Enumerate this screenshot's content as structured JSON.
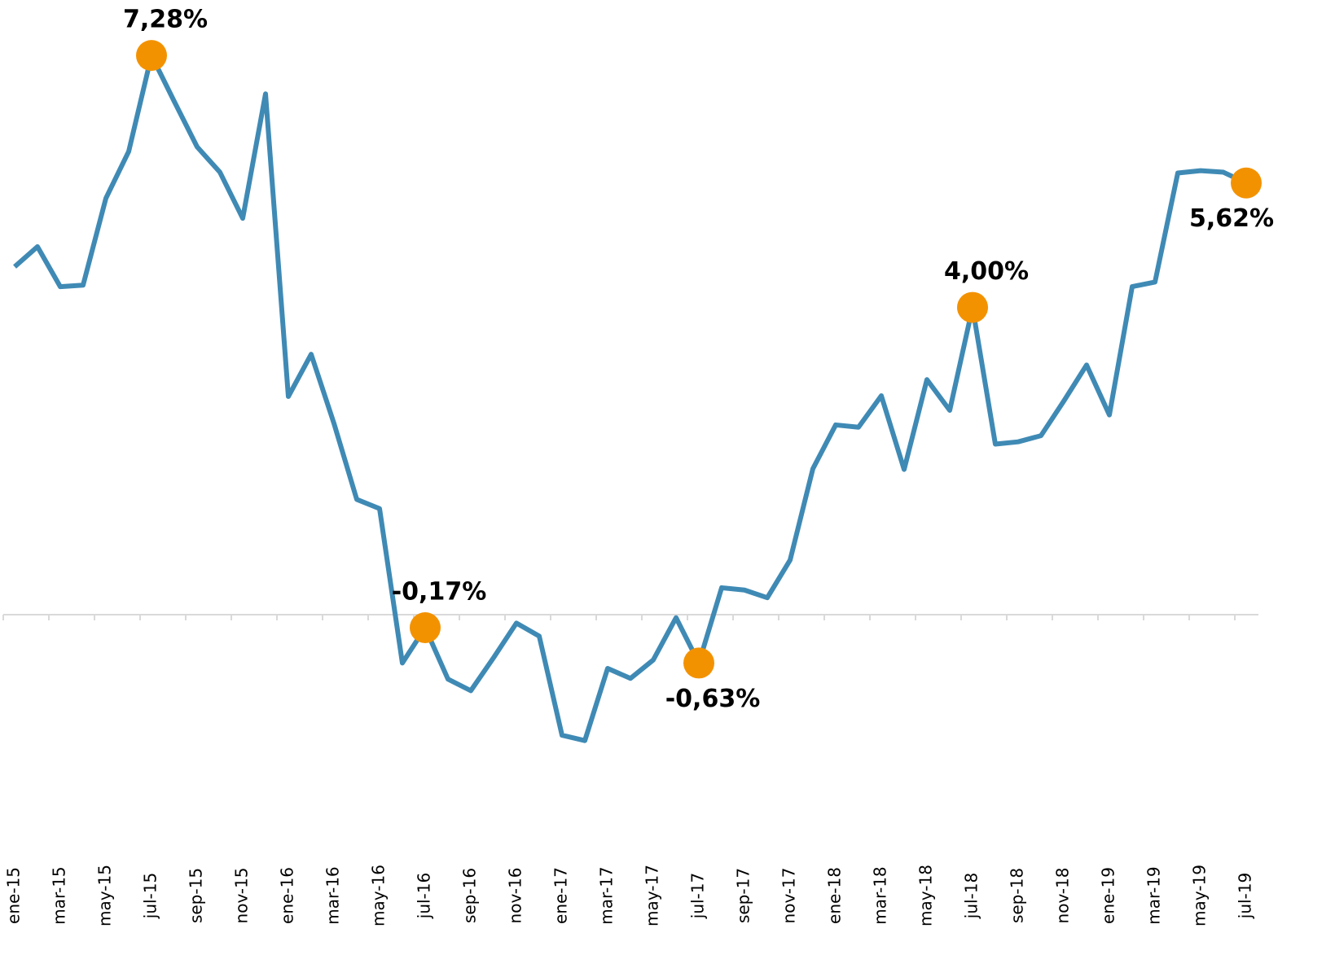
{
  "chart_data": {
    "type": "line",
    "categories": [
      "ene-15",
      null,
      "mar-15",
      null,
      "may-15",
      null,
      "jul-15",
      null,
      "sep-15",
      null,
      "nov-15",
      null,
      "ene-16",
      null,
      "mar-16",
      null,
      "may-16",
      null,
      "jul-16",
      null,
      "sep-16",
      null,
      "nov-16",
      null,
      "ene-17",
      null,
      "mar-17",
      null,
      "may-17",
      null,
      "jul-17",
      null,
      "sep-17",
      null,
      "nov-17",
      null,
      "ene-18",
      null,
      "mar-18",
      null,
      "may-18",
      null,
      "jul-18",
      null,
      "sep-18",
      null,
      "nov-18",
      null,
      "ene-19",
      null,
      "mar-19",
      null,
      "may-19",
      null,
      "jul-19"
    ],
    "series": [
      {
        "color": "#3f8ab5",
        "marker_color": "#f39200",
        "values": [
          4.53,
          4.79,
          4.27,
          4.29,
          5.42,
          6.03,
          7.28,
          6.68,
          6.09,
          5.76,
          5.16,
          6.78,
          2.84,
          3.39,
          2.49,
          1.5,
          1.38,
          -0.63,
          -0.17,
          -0.84,
          -0.99,
          -0.56,
          -0.11,
          -0.28,
          -1.57,
          -1.64,
          -0.7,
          -0.83,
          -0.59,
          -0.04,
          -0.63,
          0.35,
          0.32,
          0.22,
          0.71,
          1.9,
          2.47,
          2.44,
          2.85,
          1.89,
          3.06,
          2.66,
          4.0,
          2.22,
          2.25,
          2.33,
          2.78,
          3.25,
          2.6,
          4.27,
          4.33,
          5.75,
          5.78,
          5.76,
          5.62
        ],
        "value_labels": [
          null,
          null,
          null,
          null,
          null,
          null,
          "7,28%",
          null,
          null,
          null,
          null,
          null,
          null,
          null,
          null,
          null,
          null,
          null,
          "-0,17%",
          null,
          null,
          null,
          null,
          null,
          null,
          null,
          null,
          null,
          null,
          null,
          "-0,63%",
          null,
          null,
          null,
          null,
          null,
          null,
          null,
          null,
          null,
          null,
          null,
          "4,00%",
          null,
          null,
          null,
          null,
          null,
          null,
          null,
          null,
          null,
          null,
          null,
          "5,62%"
        ]
      }
    ],
    "ylim": [
      -3,
      8
    ]
  }
}
